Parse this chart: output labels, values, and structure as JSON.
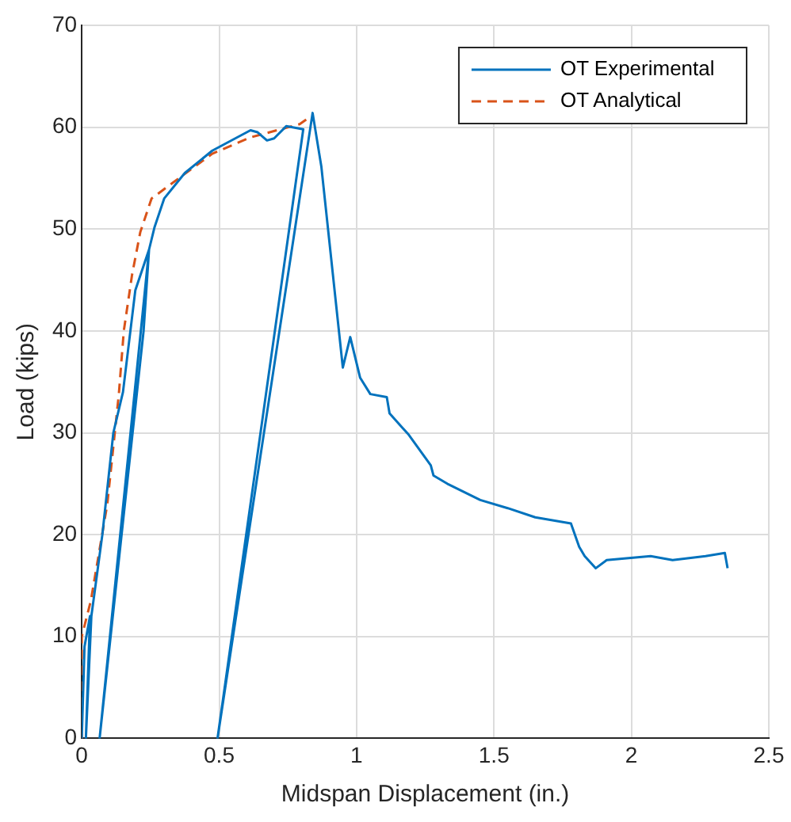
{
  "chart_data": {
    "type": "line",
    "xlabel": "Midspan Displacement (in.)",
    "ylabel": "Load (kips)",
    "xlim": [
      0,
      2.5
    ],
    "xticks": [
      0,
      0.5,
      1,
      1.5,
      2,
      2.5
    ],
    "ylim": [
      0,
      70
    ],
    "yticks": [
      0,
      10,
      20,
      30,
      40,
      50,
      60,
      70
    ],
    "grid": true,
    "legend": "top right",
    "series": [
      {
        "name": "OT Experimental",
        "color": "#0072bd",
        "line_style": "solid",
        "x": [
          0,
          0.01,
          0.03,
          0.015,
          0.035,
          0.075,
          0.115,
          0.15,
          0.195,
          0.245,
          0.065,
          0.225,
          0.245,
          0.265,
          0.3,
          0.375,
          0.475,
          0.614,
          0.64,
          0.674,
          0.7,
          0.744,
          0.806,
          0.494,
          0.84,
          0.872,
          0.95,
          0.977,
          1.013,
          1.05,
          1.11,
          1.12,
          1.19,
          1.27,
          1.28,
          1.33,
          1.45,
          1.55,
          1.65,
          1.78,
          1.81,
          1.83,
          1.87,
          1.91,
          1.99,
          2.07,
          2.15,
          2.27,
          2.34,
          2.35
        ],
        "values": [
          0,
          9,
          12,
          0,
          12,
          20,
          30,
          34,
          44,
          48,
          0,
          40,
          48,
          50.2,
          53,
          55.5,
          57.7,
          59.7,
          59.5,
          58.7,
          58.9,
          60.1,
          59.8,
          0,
          61.4,
          56.1,
          36.4,
          39.4,
          35.4,
          33.8,
          33.5,
          31.9,
          29.8,
          26.8,
          25.8,
          25,
          23.4,
          22.6,
          21.7,
          21.1,
          18.8,
          17.9,
          16.7,
          17.5,
          17.7,
          17.9,
          17.5,
          17.9,
          18.2,
          16.7
        ]
      },
      {
        "name": "OT Analytical",
        "color": "#d95319",
        "line_style": "dashed",
        "x": [
          0,
          0,
          0.033,
          0.093,
          0.135,
          0.153,
          0.183,
          0.213,
          0.254,
          0.354,
          0.475,
          0.614,
          0.793,
          0.83
        ],
        "values": [
          0,
          10,
          13.5,
          23,
          33.8,
          40,
          45.5,
          49.7,
          53,
          55,
          57.4,
          59,
          60.3,
          61
        ]
      }
    ]
  }
}
